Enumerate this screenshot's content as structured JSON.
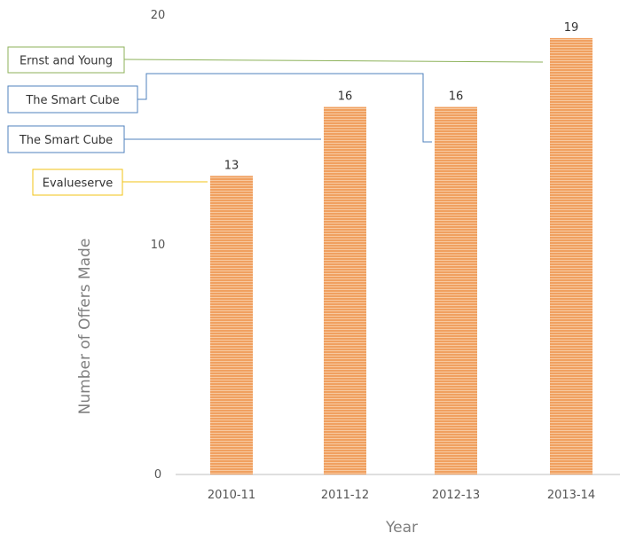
{
  "chart_data": {
    "type": "bar",
    "categories": [
      "2010-11",
      "2011-12",
      "2012-13",
      "2013-14"
    ],
    "values": [
      13,
      16,
      16,
      19
    ],
    "title": "",
    "xlabel": "Year",
    "ylabel": "Number of Offers Made",
    "ylim": [
      0,
      20
    ],
    "yticks": [
      0,
      10,
      20
    ],
    "grid": false,
    "legend": "none",
    "bar_color": "#f0a060",
    "bar_stripe_color": "#f7c9a0",
    "annotations": [
      {
        "text": "Ernst and Young",
        "category": "2013-14",
        "color": "#8db25a"
      },
      {
        "text": "The Smart Cube",
        "category": "2012-13",
        "color": "#4f81bd"
      },
      {
        "text": "The Smart Cube",
        "category": "2011-12",
        "color": "#4f81bd"
      },
      {
        "text": "Evalueserve",
        "category": "2010-11",
        "color": "#f2c314"
      }
    ]
  }
}
